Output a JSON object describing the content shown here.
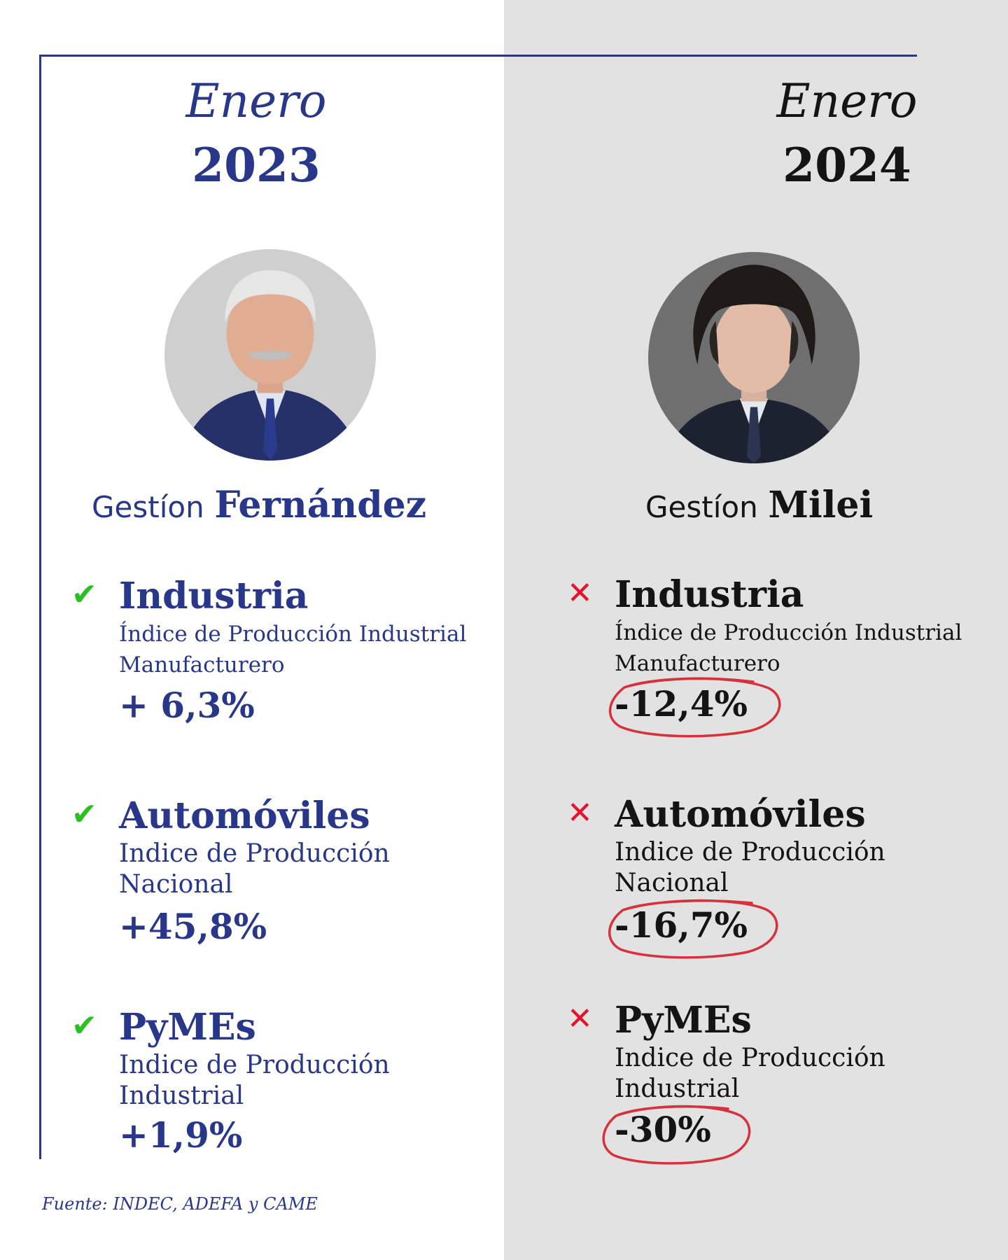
{
  "colors": {
    "primary_blue": "#28378a",
    "right_background": "#e2e2e2",
    "dark_text": "#141414",
    "check_green": "#2bbf22",
    "cross_red": "#e3142b"
  },
  "left": {
    "month": "Enero",
    "year": "2023",
    "gestion_prefix": "Gestíon",
    "gestion_name": "Fernández",
    "items": [
      {
        "icon": "check-icon",
        "title": "Industria",
        "subtitle": "Índice de Producción Industrial Manufacturero",
        "value": "+ 6,3%"
      },
      {
        "icon": "check-icon",
        "title": "Automóviles",
        "subtitle": "Indice de Producción Nacional",
        "value": "+45,8%"
      },
      {
        "icon": "check-icon",
        "title": "PyMEs",
        "subtitle": "Indice de Producción Industrial",
        "value": "+1,9%"
      }
    ]
  },
  "right": {
    "month": "Enero",
    "year": "2024",
    "gestion_prefix": "Gestíon",
    "gestion_name": "Milei",
    "items": [
      {
        "icon": "cross-icon",
        "title": "Industria",
        "subtitle": "Índice de Producción Industrial Manufacturero",
        "value": "-12,4%"
      },
      {
        "icon": "cross-icon",
        "title": "Automóviles",
        "subtitle": "Indice de Producción Nacional",
        "value": "-16,7%"
      },
      {
        "icon": "cross-icon",
        "title": "PyMEs",
        "subtitle": "Indice de Producción Industrial",
        "value": "-30%"
      }
    ]
  },
  "source": "Fuente: INDEC, ADEFA y CAME"
}
